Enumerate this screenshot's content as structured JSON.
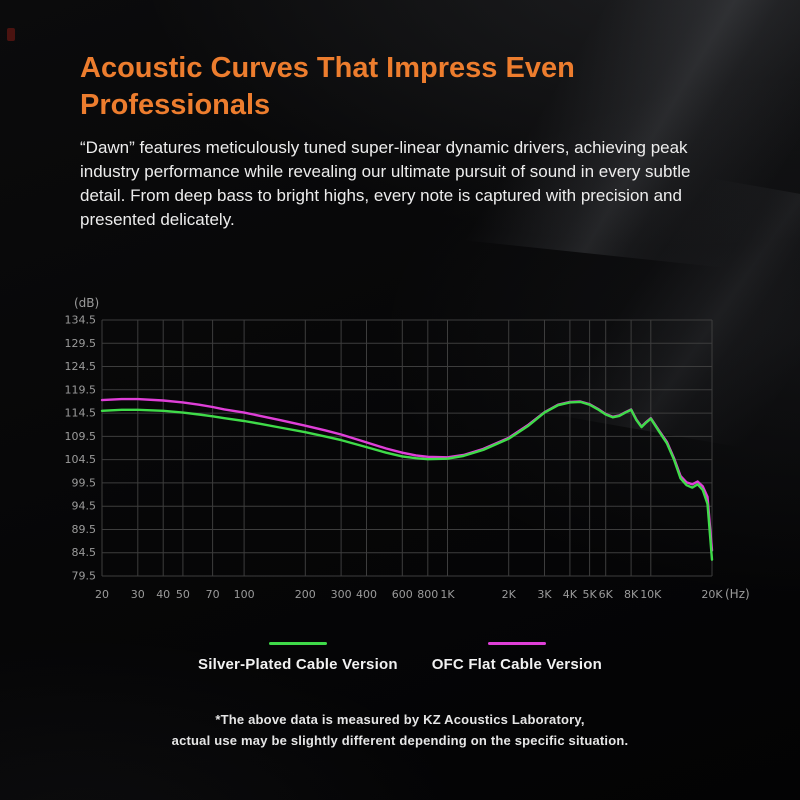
{
  "page": {
    "title_line1": "Acoustic Curves That Impress Even",
    "title_line2": "Professionals",
    "description": "“Dawn”  features meticulously tuned super-linear dynamic drivers, achieving peak industry performance while revealing our ultimate pursuit of sound in every subtle detail. From deep bass to bright highs, every note is captured with precision and presented delicately.",
    "footnote_line1": "*The above data is measured by KZ Acoustics Laboratory,",
    "footnote_line2": "actual use may be slightly different depending on the specific situation."
  },
  "colors": {
    "accent_orange": "#ED7D2E",
    "series_green": "#3FDB49",
    "series_magenta": "#DF3FD8",
    "grid": "#3d3d3d",
    "tick_text": "#9b9b9b",
    "background": "#050506"
  },
  "chart_data": {
    "type": "line",
    "title": "",
    "xlabel": "(Hz)",
    "ylabel": "(dB)",
    "x_axis": {
      "unit_label": "(Hz)",
      "scale": "log",
      "range": [
        20,
        20000
      ],
      "tick_values": [
        20,
        30,
        40,
        50,
        70,
        100,
        200,
        300,
        400,
        600,
        800,
        1000,
        2000,
        3000,
        4000,
        5000,
        6000,
        8000,
        10000,
        20000
      ],
      "tick_labels": [
        "20",
        "30",
        "40",
        "50",
        "70",
        "100",
        "200",
        "300",
        "400",
        "600",
        "800",
        "1K",
        "2K",
        "3K",
        "4K",
        "5K",
        "6K",
        "8K",
        "10K",
        "20K"
      ]
    },
    "y_axis": {
      "unit_label": "(dB)",
      "range": [
        79.5,
        134.5
      ],
      "tick_values": [
        134.5,
        129.5,
        124.5,
        119.5,
        114.5,
        109.5,
        104.5,
        99.5,
        94.5,
        89.5,
        84.5,
        79.5
      ]
    },
    "grid": true,
    "legend_position": "bottom",
    "x": [
      20,
      25,
      30,
      40,
      50,
      60,
      70,
      80,
      100,
      120,
      150,
      200,
      250,
      300,
      400,
      500,
      600,
      700,
      800,
      1000,
      1200,
      1500,
      2000,
      2500,
      3000,
      3500,
      4000,
      4500,
      5000,
      5500,
      6000,
      6500,
      7000,
      7500,
      8000,
      8500,
      9000,
      9500,
      10000,
      11000,
      12000,
      13000,
      14000,
      15000,
      16000,
      17000,
      18000,
      19000,
      20000
    ],
    "series": [
      {
        "name": "Silver-Plated Cable Version",
        "color_key": "series_green",
        "values": [
          115.0,
          115.2,
          115.2,
          115.0,
          114.6,
          114.2,
          113.8,
          113.4,
          112.8,
          112.2,
          111.4,
          110.4,
          109.5,
          108.7,
          107.2,
          106.0,
          105.2,
          104.8,
          104.6,
          104.7,
          105.3,
          106.6,
          109.0,
          111.8,
          114.6,
          116.2,
          116.8,
          116.9,
          116.3,
          115.3,
          114.2,
          113.6,
          113.9,
          114.6,
          115.2,
          113.0,
          111.5,
          112.5,
          113.3,
          110.5,
          108.0,
          104.5,
          100.5,
          99.0,
          98.5,
          99.2,
          98.0,
          95.0,
          83.0
        ]
      },
      {
        "name": "OFC Flat Cable Version",
        "color_key": "series_magenta",
        "values": [
          117.3,
          117.5,
          117.5,
          117.2,
          116.8,
          116.3,
          115.8,
          115.3,
          114.6,
          113.9,
          113.0,
          111.8,
          110.8,
          109.9,
          108.2,
          106.9,
          106.0,
          105.4,
          105.1,
          105.0,
          105.5,
          106.8,
          109.2,
          112.0,
          114.7,
          116.3,
          116.9,
          117.0,
          116.4,
          115.4,
          114.3,
          113.7,
          114.0,
          114.7,
          115.3,
          113.1,
          111.6,
          112.6,
          113.4,
          110.7,
          108.3,
          104.8,
          101.0,
          99.6,
          99.2,
          99.8,
          98.8,
          96.5,
          85.0
        ]
      }
    ]
  }
}
